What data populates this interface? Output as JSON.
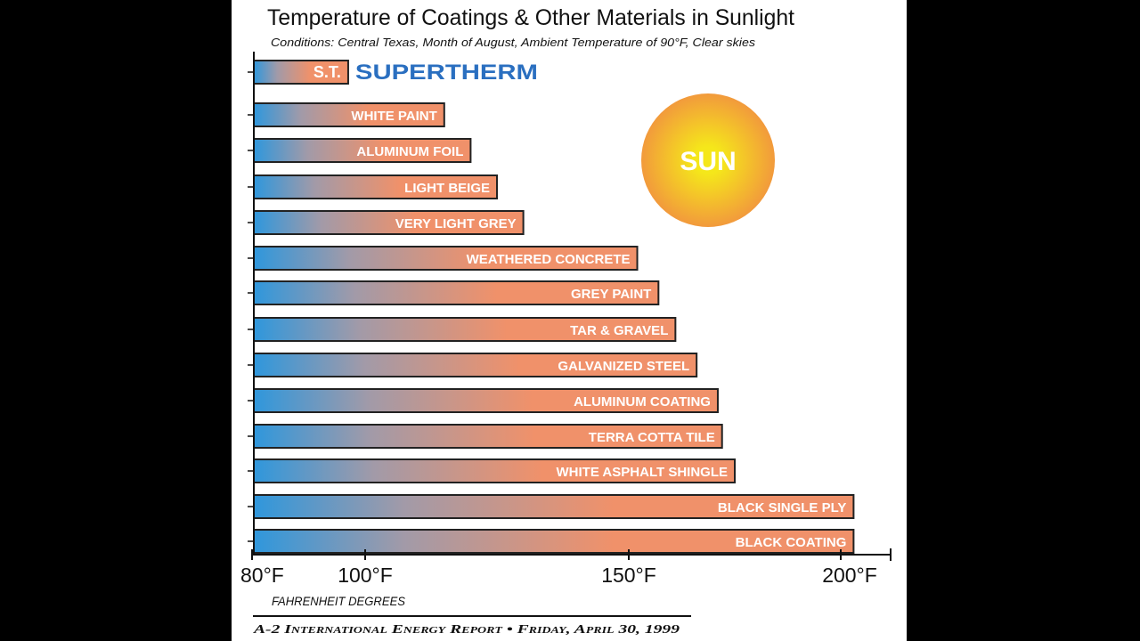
{
  "chart_data": {
    "type": "bar",
    "orientation": "horizontal",
    "title": "Temperature of Coatings & Other Materials in Sunlight",
    "subtitle": "Conditions:  Central Texas, Month of August, Ambient Temperature of 90°F, Clear skies",
    "xlabel": "FAHRENHEIT DEGREES",
    "xticks": [
      80,
      100,
      150,
      200
    ],
    "xtick_labels": [
      "80°F",
      "100°F",
      "150°F",
      "200°F"
    ],
    "xlim": [
      80,
      205
    ],
    "grid": false,
    "categories": [
      "S.T.",
      "WHITE PAINT",
      "ALUMINUM FOIL",
      "LIGHT BEIGE",
      "VERY LIGHT GREY",
      "WEATHERED CONCRETE",
      "GREY PAINT",
      "TAR & GRAVEL",
      "GALVANIZED STEEL",
      "ALUMINUM COATING",
      "TERRA COTTA TILE",
      "WHITE ASPHALT SHINGLE",
      "BLACK SINGLE PLY",
      "BLACK COATING"
    ],
    "values": [
      97,
      115,
      120,
      125,
      130,
      152,
      157,
      161,
      166,
      171,
      172,
      175,
      203,
      203
    ],
    "brand_label": "SUPERTHERM",
    "annotation": "SUN",
    "footer": "A-2 International Energy Report • Friday, April 30, 1999",
    "colors": {
      "bar_start": "#2f97dc",
      "bar_mid": "#a29aa8",
      "bar_end": "#f0916a",
      "brand": "#2a6fc0",
      "sun_outer": "#f29a3c",
      "sun_inner": "#f5e71a"
    }
  }
}
